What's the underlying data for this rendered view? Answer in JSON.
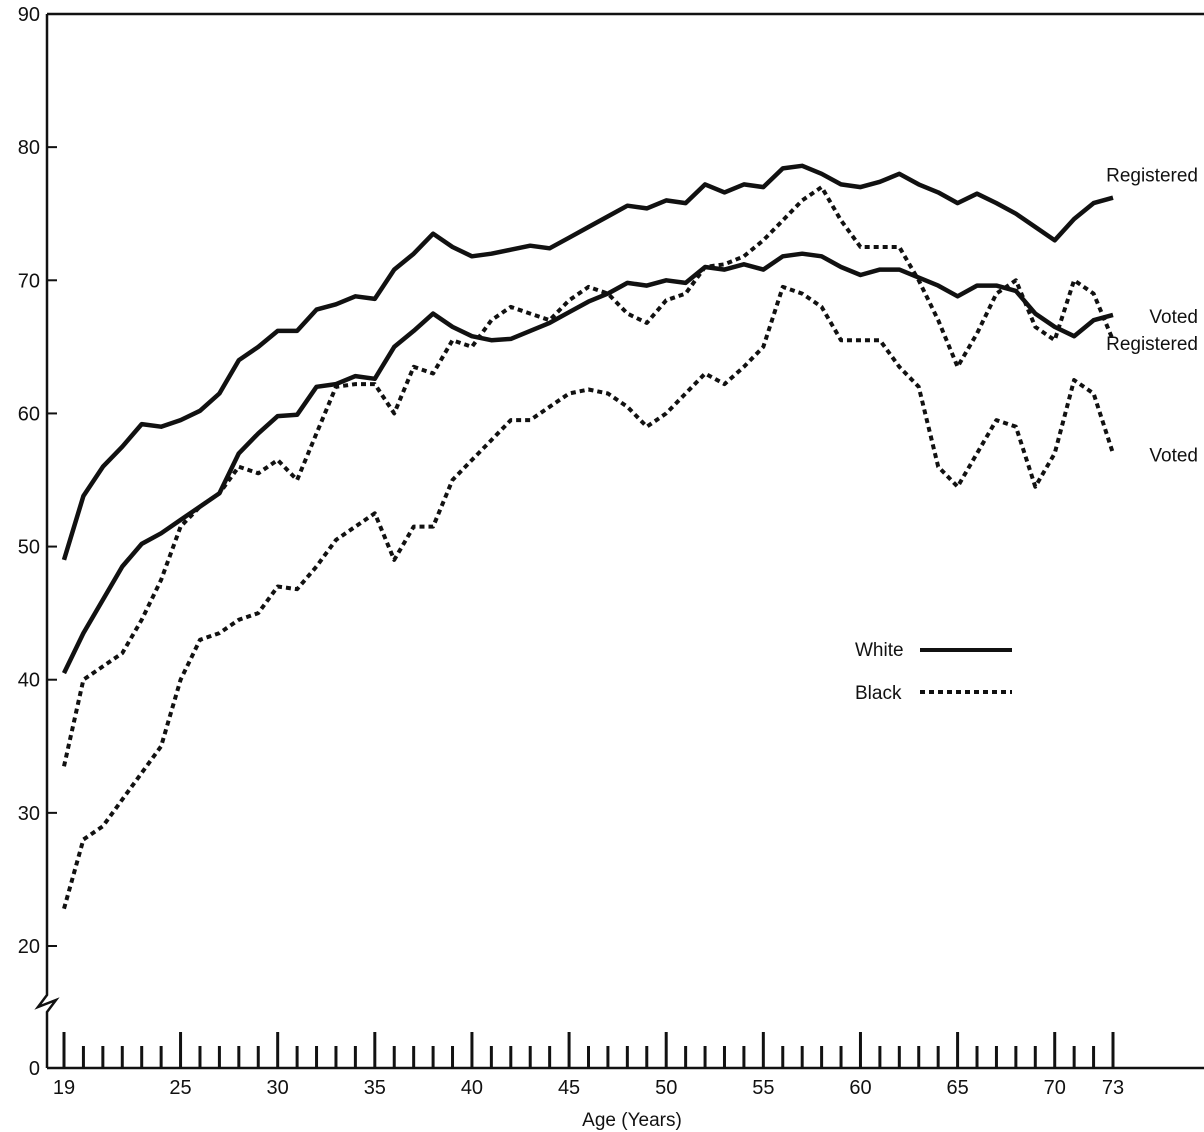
{
  "chart_data": {
    "type": "line",
    "title": "",
    "xlabel": "Age (Years)",
    "ylabel": "",
    "xlim": [
      19,
      73
    ],
    "ylim": [
      0,
      90
    ],
    "axis_break": "between 0 and 20",
    "grid": false,
    "x_ticks": [
      19,
      25,
      30,
      35,
      40,
      45,
      50,
      55,
      60,
      65,
      70,
      73
    ],
    "x_tick_labels": [
      "19",
      "25",
      "30",
      "35",
      "40",
      "45",
      "50",
      "55",
      "60",
      "65",
      "70",
      "73"
    ],
    "y_ticks": [
      0,
      20,
      30,
      40,
      50,
      60,
      70,
      80,
      90
    ],
    "y_tick_labels": [
      "0",
      "20",
      "30",
      "40",
      "50",
      "60",
      "70",
      "80",
      "90"
    ],
    "legend": {
      "placement": "center-right",
      "entries": [
        {
          "label": "White",
          "style": "solid"
        },
        {
          "label": "Black",
          "style": "dotted"
        }
      ]
    },
    "x": [
      19,
      20,
      21,
      22,
      23,
      24,
      25,
      26,
      27,
      28,
      29,
      30,
      31,
      32,
      33,
      34,
      35,
      36,
      37,
      38,
      39,
      40,
      41,
      42,
      43,
      44,
      45,
      46,
      47,
      48,
      49,
      50,
      51,
      52,
      53,
      54,
      55,
      56,
      57,
      58,
      59,
      60,
      61,
      62,
      63,
      64,
      65,
      66,
      67,
      68,
      69,
      70,
      71,
      72,
      73
    ],
    "series": [
      {
        "group": "White",
        "line_style": "solid",
        "end_label": "Registered",
        "values": [
          49,
          53.8,
          56,
          57.5,
          59.2,
          59,
          59.5,
          60.2,
          61.5,
          64,
          65,
          66.2,
          66.2,
          67.8,
          68.2,
          68.8,
          68.6,
          70.8,
          72,
          73.5,
          72.5,
          71.8,
          72,
          72.3,
          72.6,
          72.4,
          73.2,
          74,
          74.8,
          75.6,
          75.4,
          76,
          75.8,
          77.2,
          76.6,
          77.2,
          77,
          78.4,
          78.6,
          78,
          77.2,
          77,
          77.4,
          78,
          77.2,
          76.6,
          75.8,
          76.5,
          75.8,
          75,
          74,
          73,
          74.6,
          75.8,
          76.2
        ]
      },
      {
        "group": "White",
        "line_style": "solid",
        "end_label": "Voted",
        "values": [
          40.5,
          43.5,
          46,
          48.5,
          50.2,
          51,
          52,
          53,
          54,
          57,
          58.5,
          59.8,
          59.9,
          62,
          62.2,
          62.8,
          62.6,
          65,
          66.2,
          67.5,
          66.5,
          65.8,
          65.5,
          65.6,
          66.2,
          66.8,
          67.6,
          68.4,
          69,
          69.8,
          69.6,
          70,
          69.8,
          71,
          70.8,
          71.2,
          70.8,
          71.8,
          72,
          71.8,
          71,
          70.4,
          70.8,
          70.8,
          70.2,
          69.6,
          68.8,
          69.6,
          69.6,
          69.2,
          67.5,
          66.5,
          65.8,
          67,
          67.4
        ]
      },
      {
        "group": "Black",
        "line_style": "dotted",
        "end_label": "Registered",
        "values": [
          33.5,
          40,
          41,
          42,
          44.5,
          47.5,
          51.5,
          53,
          54,
          56,
          55.5,
          56.5,
          55,
          58.5,
          62,
          62.2,
          62.2,
          60,
          63.5,
          63,
          65.5,
          65,
          67,
          68,
          67.5,
          67,
          68.5,
          69.5,
          69,
          67.5,
          66.8,
          68.5,
          69,
          71,
          71.2,
          71.8,
          73,
          74.5,
          76,
          77,
          74.5,
          72.5,
          72.5,
          72.5,
          70,
          67,
          63.5,
          66,
          69,
          70,
          66.5,
          65.5,
          70,
          69,
          65.5
        ]
      },
      {
        "group": "Black",
        "line_style": "dotted",
        "end_label": "Voted",
        "values": [
          22.8,
          28,
          29,
          31,
          33,
          35,
          40,
          43,
          43.5,
          44.5,
          45,
          47,
          46.8,
          48.5,
          50.5,
          51.5,
          52.5,
          49,
          51.5,
          51.5,
          55,
          56.5,
          58,
          59.5,
          59.5,
          60.5,
          61.5,
          61.8,
          61.5,
          60.5,
          59,
          60,
          61.5,
          63,
          62.2,
          63.5,
          65,
          69.5,
          69,
          68,
          65.5,
          65.5,
          65.5,
          63.5,
          62,
          56,
          54.5,
          57,
          59.5,
          59,
          54.5,
          57,
          62.5,
          61.5,
          57
        ]
      }
    ]
  }
}
